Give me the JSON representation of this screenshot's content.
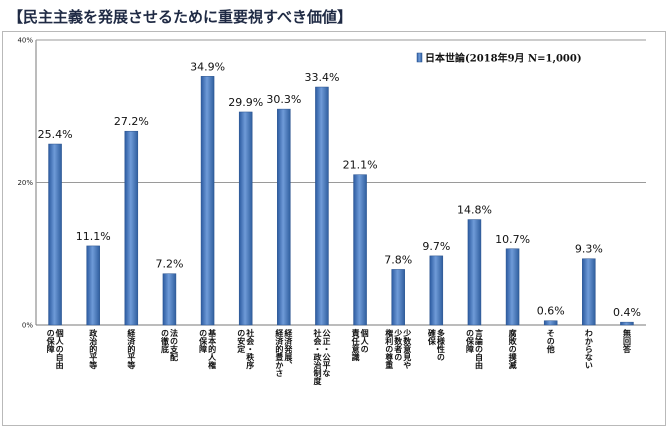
{
  "chart_data": {
    "type": "bar",
    "title": "【民主主義を発展させるために重要視すべき価値】",
    "legend": "日本世論(2018年9月 N=1,000)",
    "legend_position": "top-right",
    "series_color": "#3d6fb5",
    "ylim": [
      0,
      40
    ],
    "yticks": [
      "0%",
      "20%",
      "40%"
    ],
    "ytick_values": [
      0,
      20,
      40
    ],
    "categories": [
      [
        "個人の自由",
        "の保障"
      ],
      [
        "政治的平等"
      ],
      [
        "経済的平等"
      ],
      [
        "法の支配",
        "の徹底"
      ],
      [
        "基本的人権",
        "の保障"
      ],
      [
        "社会・秩序",
        "の安定"
      ],
      [
        "経済発展、",
        "経済的豊かさ"
      ],
      [
        "公正・公平な",
        "社会・政治制度"
      ],
      [
        "個人の",
        "責任意識"
      ],
      [
        "少数意見や",
        "少数者の",
        "権利の尊重"
      ],
      [
        "多様性の",
        "確保"
      ],
      [
        "言論の自由",
        "の保障"
      ],
      [
        "腐敗の撲滅"
      ],
      [
        "その他"
      ],
      [
        "わからない"
      ],
      [
        "無回答"
      ]
    ],
    "values": [
      25.4,
      11.1,
      27.2,
      7.2,
      34.9,
      29.9,
      30.3,
      33.4,
      21.1,
      7.8,
      9.7,
      14.8,
      10.7,
      0.6,
      9.3,
      0.4
    ],
    "value_labels": [
      "25.4%",
      "11.1%",
      "27.2%",
      "7.2%",
      "34.9%",
      "29.9%",
      "30.3%",
      "33.4%",
      "21.1%",
      "7.8%",
      "9.7%",
      "14.8%",
      "10.7%",
      "0.6%",
      "9.3%",
      "0.4%"
    ]
  }
}
